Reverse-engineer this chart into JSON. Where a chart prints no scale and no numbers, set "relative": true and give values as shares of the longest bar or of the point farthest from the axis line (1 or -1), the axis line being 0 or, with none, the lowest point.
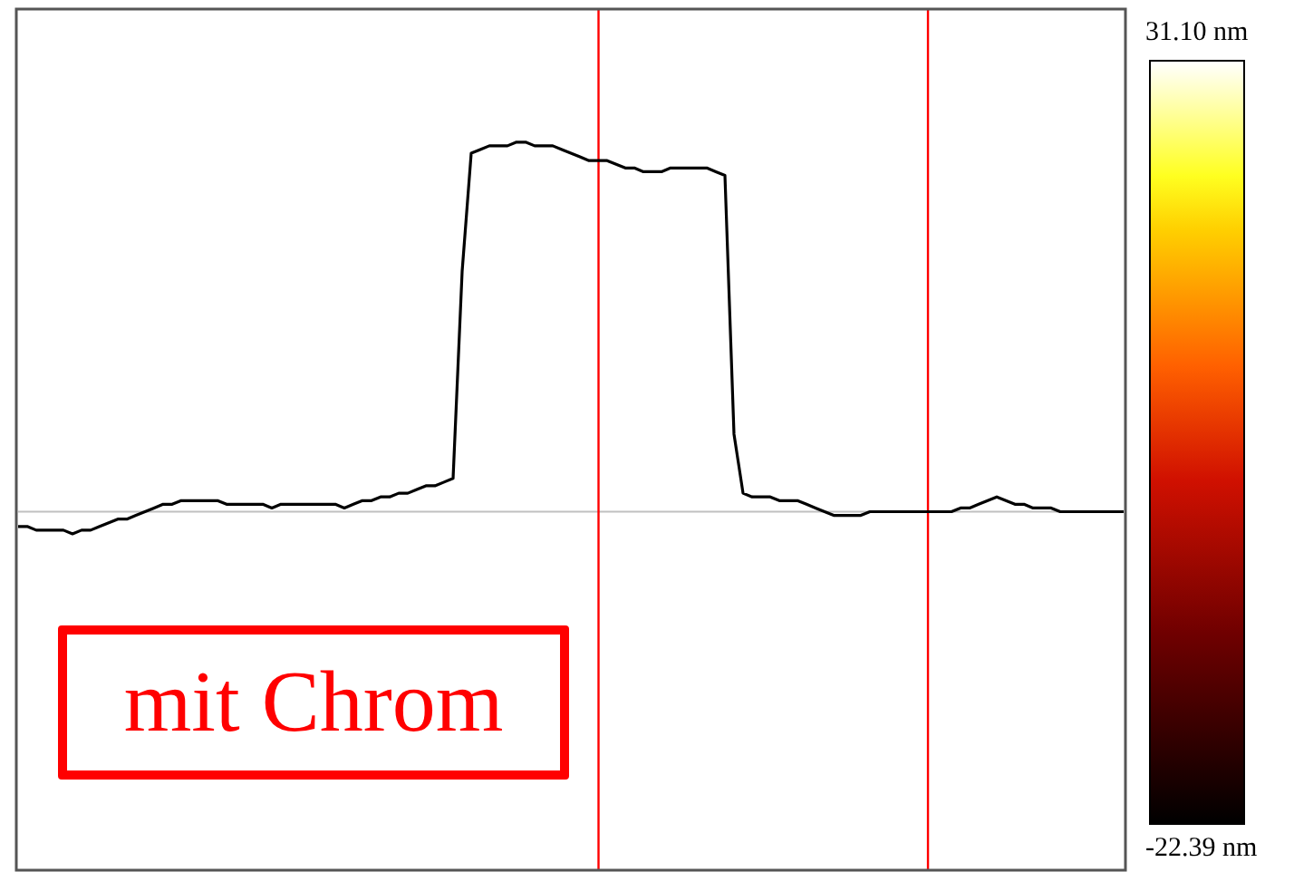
{
  "chart_data": {
    "type": "line",
    "relative": true,
    "marker": "none",
    "legend": false,
    "categories": [
      null,
      null,
      null,
      null,
      null,
      null,
      null,
      null,
      null,
      null,
      null,
      null,
      null,
      null,
      null,
      null,
      null,
      null,
      null,
      null,
      null,
      null,
      null,
      null,
      null,
      null,
      null,
      null,
      null,
      null,
      null,
      null,
      null,
      null,
      null,
      null,
      null,
      null,
      null,
      null,
      null,
      null,
      null,
      null,
      null,
      null,
      null,
      null,
      null,
      null,
      null,
      null,
      null,
      null,
      null,
      null,
      null,
      null,
      null,
      null,
      null,
      null,
      null,
      null,
      null,
      null,
      null,
      null,
      null,
      null,
      null,
      null,
      null,
      null,
      null,
      null,
      null,
      null,
      null,
      null,
      null,
      null,
      null,
      null,
      null,
      null,
      null,
      null,
      null,
      null,
      null,
      null,
      null,
      null,
      null,
      null,
      null,
      null,
      null,
      null,
      null,
      null,
      null,
      null,
      null,
      null,
      null,
      null,
      null,
      null,
      null,
      null,
      null,
      null,
      null,
      null,
      null,
      null,
      null,
      null,
      null,
      null,
      null
    ],
    "series": [
      {
        "color": "#000000",
        "values": [
          -0.04,
          -0.04,
          -0.05,
          -0.05,
          -0.05,
          -0.05,
          -0.06,
          -0.05,
          -0.05,
          -0.04,
          -0.03,
          -0.02,
          -0.02,
          -0.01,
          0,
          0.01,
          0.02,
          0.02,
          0.03,
          0.03,
          0.03,
          0.03,
          0.03,
          0.02,
          0.02,
          0.02,
          0.02,
          0.02,
          0.01,
          0.02,
          0.02,
          0.02,
          0.02,
          0.02,
          0.02,
          0.02,
          0.01,
          0.02,
          0.03,
          0.03,
          0.04,
          0.04,
          0.05,
          0.05,
          0.06,
          0.07,
          0.07,
          0.08,
          0.09,
          0.65,
          0.97,
          0.98,
          0.99,
          0.99,
          0.99,
          1,
          1,
          0.99,
          0.99,
          0.99,
          0.98,
          0.97,
          0.96,
          0.95,
          0.95,
          0.95,
          0.94,
          0.93,
          0.93,
          0.92,
          0.92,
          0.92,
          0.93,
          0.93,
          0.93,
          0.93,
          0.93,
          0.92,
          0.91,
          0.21,
          0.05,
          0.04,
          0.04,
          0.04,
          0.03,
          0.03,
          0.03,
          0.02,
          0.01,
          0,
          -0.01,
          -0.01,
          -0.01,
          -0.01,
          0,
          0,
          0,
          0,
          0,
          0,
          0,
          0,
          0,
          0,
          0.01,
          0.01,
          0.02,
          0.03,
          0.04,
          0.03,
          0.02,
          0.02,
          0.01,
          0.01,
          0.01,
          0,
          0,
          0,
          0,
          0,
          0,
          0,
          0
        ]
      }
    ],
    "annotations": [
      "mit Chrom",
      "31.10 nm",
      "-22.39 nm"
    ]
  }
}
